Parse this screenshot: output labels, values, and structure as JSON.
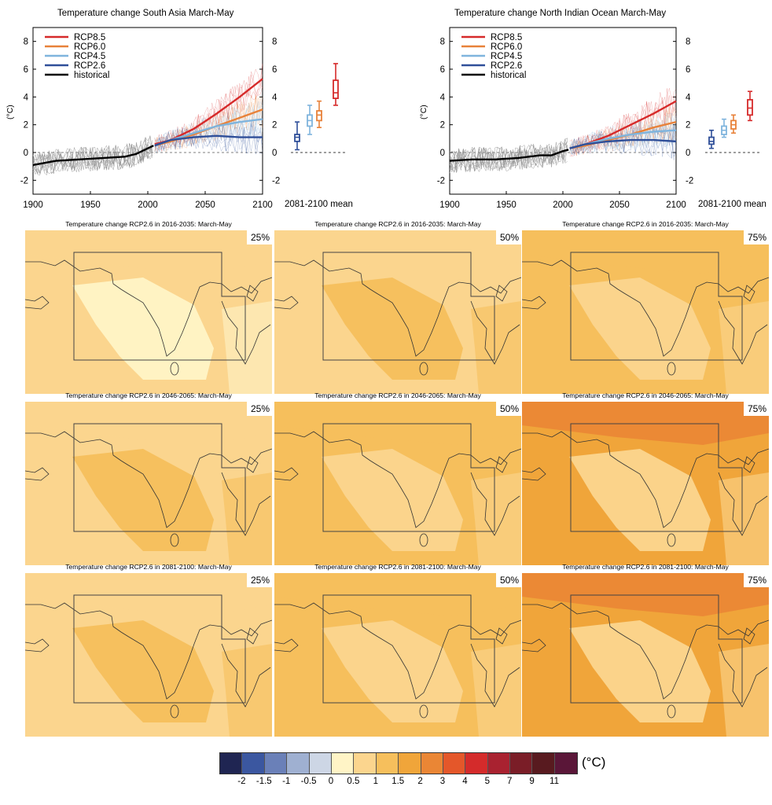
{
  "colors": {
    "rcp85": "#d62a2a",
    "rcp60": "#e8823a",
    "rcp45": "#7fb4dd",
    "rcp26": "#2f4f99",
    "historical": "#000000",
    "scale": [
      "#1f2552",
      "#3b57a0",
      "#6a80b8",
      "#9fb0d1",
      "#cdd6e5",
      "#fff4c6",
      "#fbd58e",
      "#f6bf5c",
      "#f0a53a",
      "#ea8635",
      "#e4572a",
      "#d42b2b",
      "#a92230",
      "#7a1d27",
      "#581a1f",
      "#5a1638"
    ]
  },
  "chart_data": [
    {
      "type": "line",
      "title": "Temperature change South Asia March-May",
      "ylabel": "(°C)",
      "xlim": [
        1900,
        2100
      ],
      "ylim": [
        -3,
        9
      ],
      "xticks": [
        "1900",
        "1950",
        "2000",
        "2050",
        "2100"
      ],
      "yticks": [
        "-2",
        "0",
        "2",
        "4",
        "6",
        "8"
      ],
      "legend_position": "top-left",
      "series": [
        {
          "name": "RCP8.5",
          "x": [
            2006,
            2020,
            2040,
            2060,
            2080,
            2100
          ],
          "values": [
            0.6,
            0.9,
            1.7,
            2.8,
            4.0,
            5.3
          ]
        },
        {
          "name": "RCP6.0",
          "x": [
            2006,
            2020,
            2040,
            2060,
            2080,
            2100
          ],
          "values": [
            0.5,
            0.8,
            1.3,
            1.9,
            2.5,
            3.1
          ]
        },
        {
          "name": "RCP4.5",
          "x": [
            2006,
            2020,
            2040,
            2060,
            2080,
            2100
          ],
          "values": [
            0.5,
            0.9,
            1.4,
            1.9,
            2.2,
            2.4
          ]
        },
        {
          "name": "RCP2.6",
          "x": [
            2006,
            2020,
            2040,
            2060,
            2080,
            2100
          ],
          "values": [
            0.5,
            0.9,
            1.1,
            1.2,
            1.1,
            1.1
          ]
        },
        {
          "name": "historical",
          "x": [
            1900,
            1920,
            1940,
            1960,
            1980,
            1990,
            2000,
            2005
          ],
          "values": [
            -0.9,
            -0.6,
            -0.5,
            -0.4,
            -0.3,
            -0.1,
            0.3,
            0.5
          ]
        }
      ],
      "boxplots": {
        "label": "2081-2100 mean",
        "items": [
          {
            "name": "RCP2.6",
            "min": 0.2,
            "q1": 0.8,
            "median": 1.1,
            "q3": 1.3,
            "max": 2.2
          },
          {
            "name": "RCP4.5",
            "min": 1.3,
            "q1": 1.9,
            "median": 2.3,
            "q3": 2.7,
            "max": 3.4
          },
          {
            "name": "RCP6.0",
            "min": 1.8,
            "q1": 2.3,
            "median": 2.7,
            "q3": 3.0,
            "max": 3.7
          },
          {
            "name": "RCP8.5",
            "min": 3.4,
            "q1": 3.9,
            "median": 4.3,
            "q3": 5.2,
            "max": 6.4
          }
        ]
      }
    },
    {
      "type": "line",
      "title": "Temperature change North Indian Ocean March-May",
      "ylabel": "(°C)",
      "xlim": [
        1900,
        2100
      ],
      "ylim": [
        -3,
        9
      ],
      "xticks": [
        "1900",
        "1950",
        "2000",
        "2050",
        "2100"
      ],
      "yticks": [
        "-2",
        "0",
        "2",
        "4",
        "6",
        "8"
      ],
      "legend_position": "top-left",
      "series": [
        {
          "name": "RCP8.5",
          "x": [
            2006,
            2020,
            2040,
            2060,
            2080,
            2100
          ],
          "values": [
            0.3,
            0.6,
            1.2,
            2.0,
            2.8,
            3.7
          ]
        },
        {
          "name": "RCP6.0",
          "x": [
            2006,
            2020,
            2040,
            2060,
            2080,
            2100
          ],
          "values": [
            0.3,
            0.5,
            0.9,
            1.3,
            1.8,
            2.2
          ]
        },
        {
          "name": "RCP4.5",
          "x": [
            2006,
            2020,
            2040,
            2060,
            2080,
            2100
          ],
          "values": [
            0.3,
            0.6,
            1.0,
            1.3,
            1.5,
            1.6
          ]
        },
        {
          "name": "RCP2.6",
          "x": [
            2006,
            2020,
            2040,
            2060,
            2080,
            2100
          ],
          "values": [
            0.3,
            0.6,
            0.8,
            0.9,
            0.9,
            0.8
          ]
        },
        {
          "name": "historical",
          "x": [
            1900,
            1920,
            1940,
            1960,
            1980,
            1990,
            2000,
            2005
          ],
          "values": [
            -0.6,
            -0.5,
            -0.5,
            -0.4,
            -0.2,
            -0.2,
            0.1,
            0.2
          ]
        }
      ],
      "boxplots": {
        "label": "2081-2100 mean",
        "items": [
          {
            "name": "RCP2.6",
            "min": 0.3,
            "q1": 0.6,
            "median": 0.8,
            "q3": 1.1,
            "max": 1.6
          },
          {
            "name": "RCP4.5",
            "min": 1.1,
            "q1": 1.3,
            "median": 1.6,
            "q3": 1.9,
            "max": 2.4
          },
          {
            "name": "RCP6.0",
            "min": 1.4,
            "q1": 1.7,
            "median": 2.0,
            "q3": 2.3,
            "max": 2.7
          },
          {
            "name": "RCP8.5",
            "min": 2.3,
            "q1": 2.7,
            "median": 3.2,
            "q3": 3.8,
            "max": 4.4
          }
        ]
      }
    },
    {
      "type": "heatmap",
      "maps": [
        {
          "title": "Temperature change RCP2.6 in 2016-2035: March-May",
          "percentile": "25%",
          "dominant_range": "0-0.5"
        },
        {
          "title": "Temperature change RCP2.6 in 2016-2035: March-May",
          "percentile": "50%",
          "dominant_range": "0.5-1"
        },
        {
          "title": "Temperature change RCP2.6 in 2016-2035: March-May",
          "percentile": "75%",
          "dominant_range": "0.5-1.5"
        },
        {
          "title": "Temperature change RCP2.6 in 2046-2065: March-May",
          "percentile": "25%",
          "dominant_range": "0.5-1"
        },
        {
          "title": "Temperature change RCP2.6 in 2046-2065: March-May",
          "percentile": "50%",
          "dominant_range": "0.5-1.5"
        },
        {
          "title": "Temperature change RCP2.6 in 2046-2065: March-May",
          "percentile": "75%",
          "dominant_range": "1-3"
        },
        {
          "title": "Temperature change RCP2.6 in 2081-2100: March-May",
          "percentile": "25%",
          "dominant_range": "0.5-1"
        },
        {
          "title": "Temperature change RCP2.6 in 2081-2100: March-May",
          "percentile": "50%",
          "dominant_range": "0.5-1.5"
        },
        {
          "title": "Temperature change RCP2.6 in 2081-2100: March-May",
          "percentile": "75%",
          "dominant_range": "1-3"
        }
      ],
      "colorbar": {
        "ticks": [
          "-2",
          "-1.5",
          "-1",
          "-0.5",
          "0",
          "0.5",
          "1",
          "1.5",
          "2",
          "3",
          "4",
          "5",
          "7",
          "9",
          "11"
        ],
        "unit": "(°C)"
      }
    }
  ]
}
